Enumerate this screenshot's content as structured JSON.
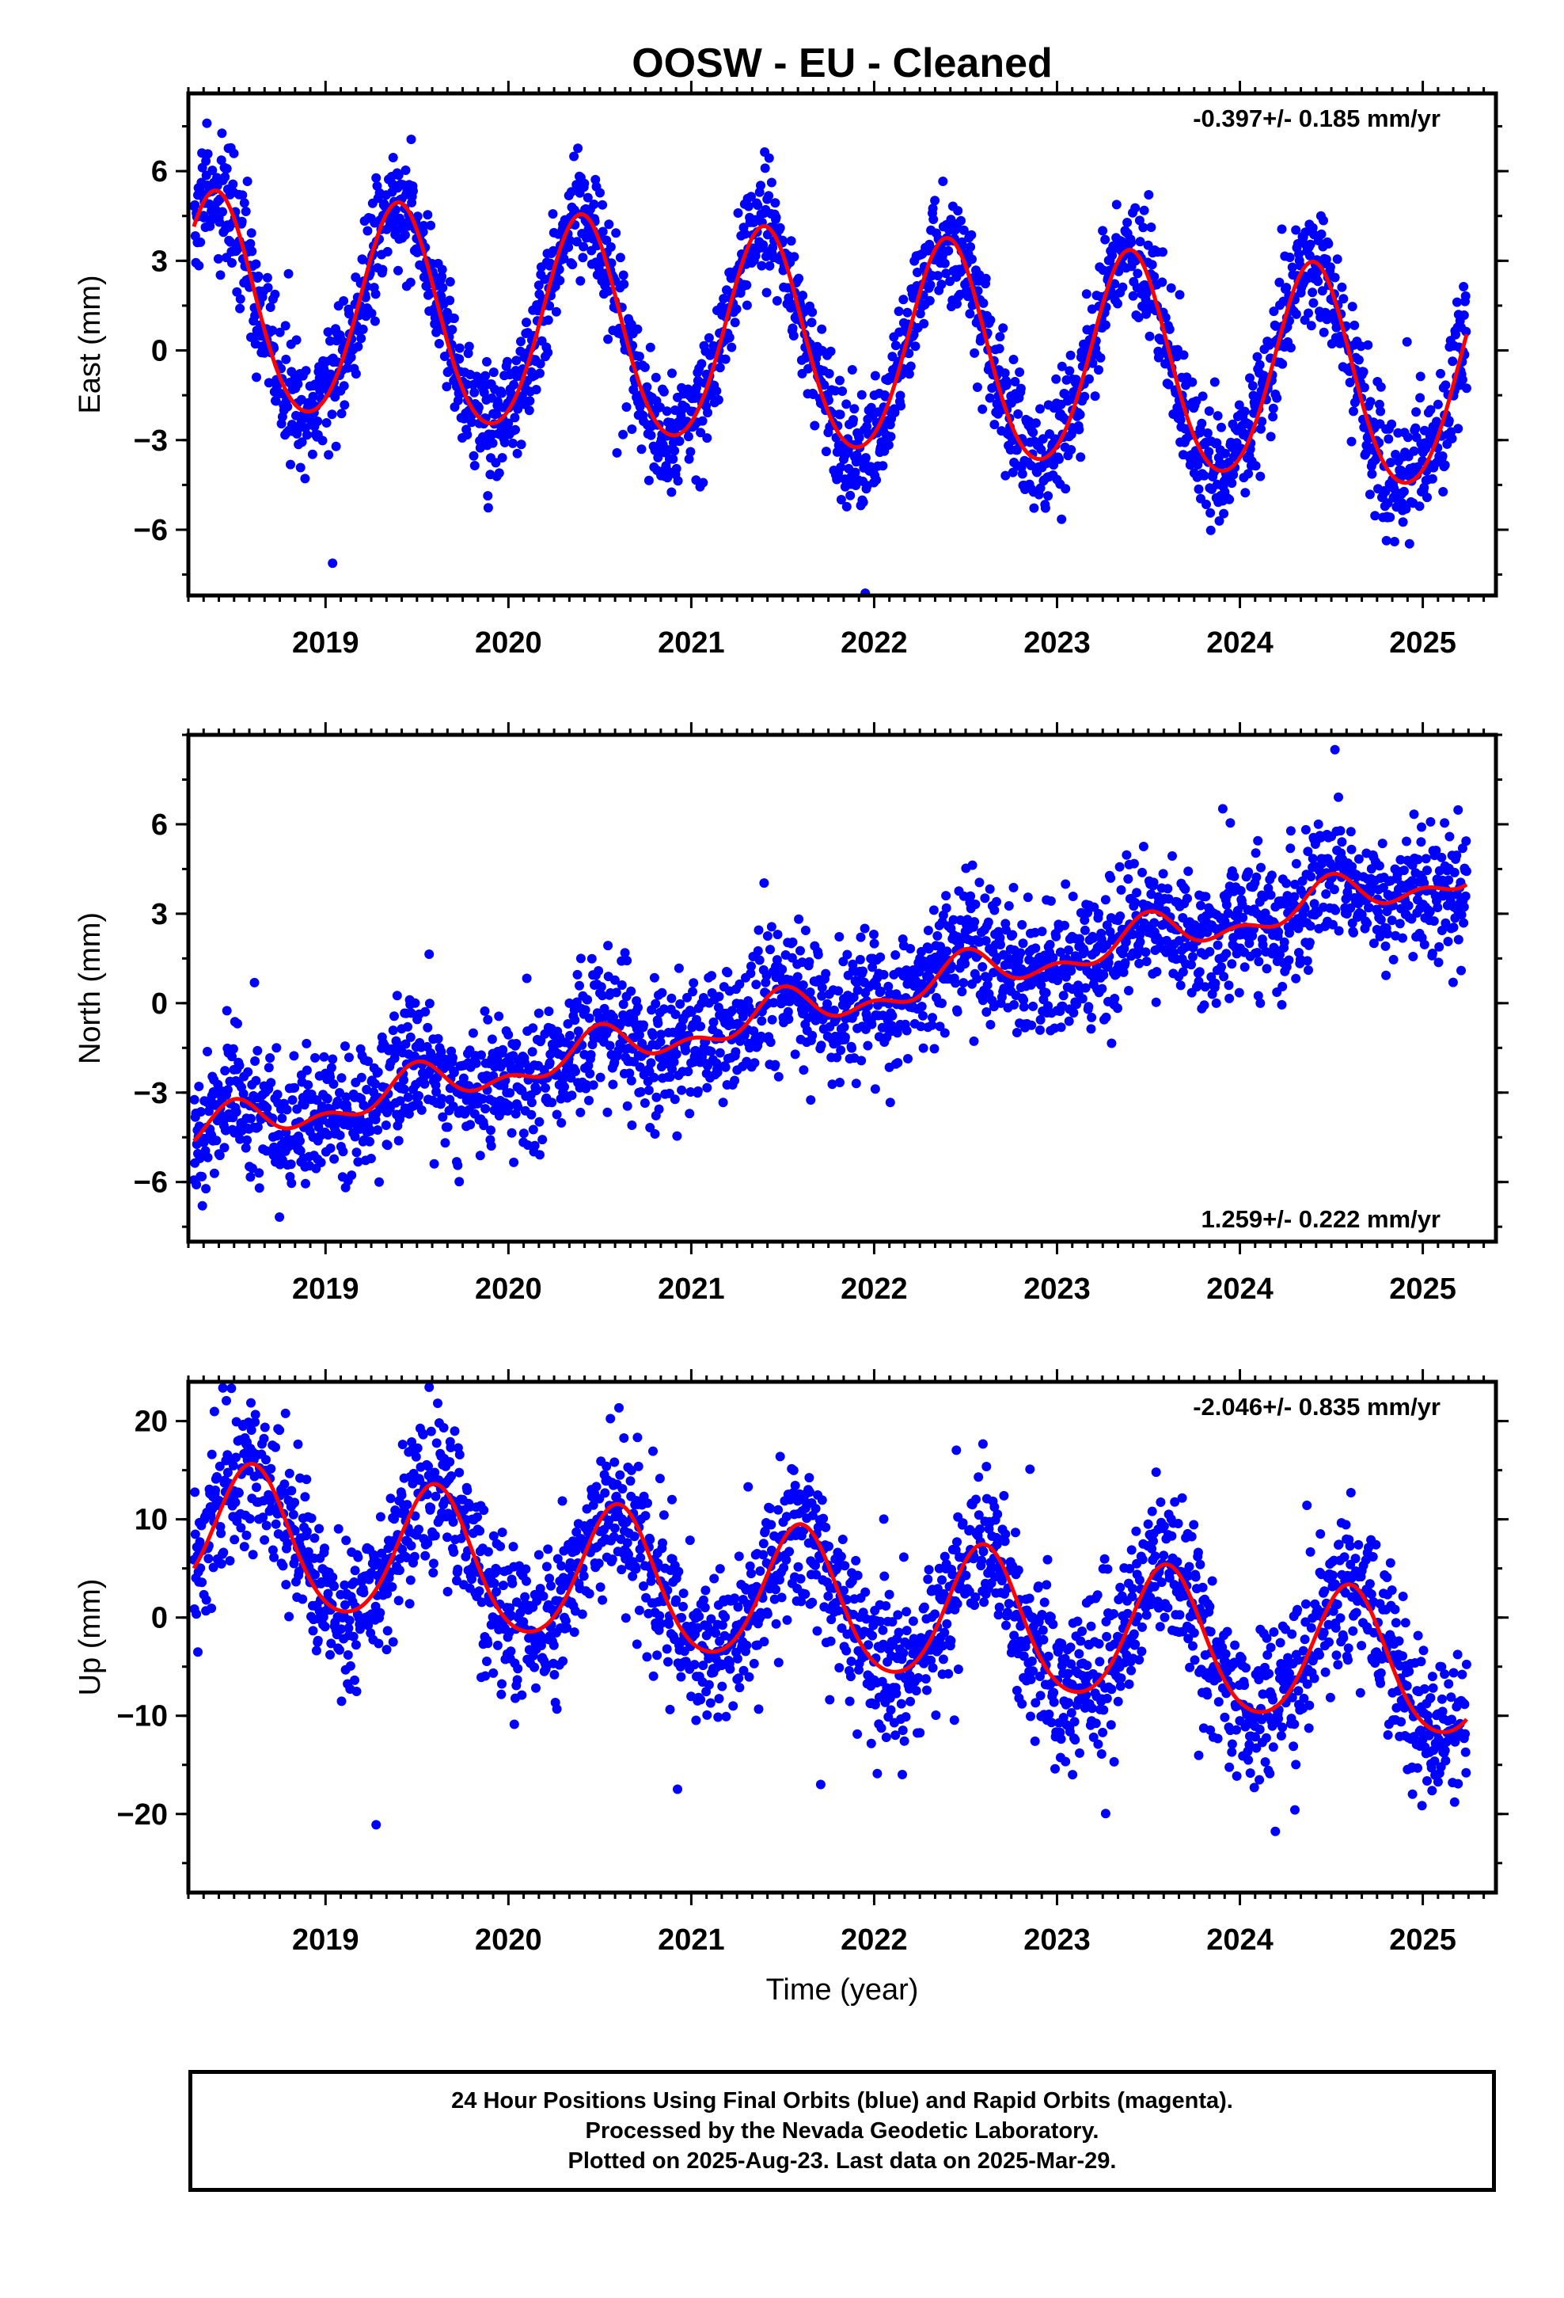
{
  "title": "OOSW  - EU - Cleaned",
  "colors": {
    "final_orbits": "#0000ff",
    "model_fit": "#ff0000",
    "frame": "#000000"
  },
  "footer": {
    "line1": "24 Hour Positions Using Final Orbits (blue) and Rapid Orbits (magenta).",
    "line2": "Processed by the Nevada Geodetic Laboratory.",
    "line3": "Plotted on 2025-Aug-23. Last data on 2025-Mar-29."
  },
  "chart_data": [
    {
      "type": "scatter",
      "component": "east",
      "ylabel": "East (mm)",
      "xlabel": "",
      "xlim": [
        2018.25,
        2025.4
      ],
      "ylim": [
        -8.2,
        8.6
      ],
      "xticks": [
        "2019",
        "2020",
        "2021",
        "2022",
        "2023",
        "2024",
        "2025"
      ],
      "yticks": [
        -6,
        -3,
        0,
        3,
        6
      ],
      "data_start": 2018.28,
      "data_end": 2025.24,
      "annotation": "-0.397+/- 0.185 mm/yr",
      "trend_mm_per_yr": -0.397,
      "offset_at_start_mm": 1.5,
      "annual_amplitude_mm": 3.6,
      "annual_peak_fraction_of_year": 0.4,
      "semiannual_amplitude_mm": 0.3,
      "scatter_sd_mm": 1.0,
      "sample_points": [
        [
          2018.3,
          6.2
        ],
        [
          2018.85,
          -2.0
        ],
        [
          2019.38,
          4.9
        ],
        [
          2019.85,
          -2.4
        ],
        [
          2020.4,
          4.5
        ],
        [
          2020.85,
          -2.7
        ],
        [
          2021.4,
          4.1
        ],
        [
          2021.85,
          -3.0
        ],
        [
          2022.4,
          3.7
        ],
        [
          2022.85,
          -3.4
        ],
        [
          2023.4,
          3.3
        ],
        [
          2023.88,
          -3.8
        ],
        [
          2024.4,
          2.9
        ],
        [
          2024.88,
          -4.3
        ],
        [
          2025.24,
          1.0
        ]
      ]
    },
    {
      "type": "scatter",
      "component": "north",
      "ylabel": "North (mm)",
      "xlabel": "",
      "xlim": [
        2018.25,
        2025.4
      ],
      "ylim": [
        -8.0,
        9.0
      ],
      "xticks": [
        "2019",
        "2020",
        "2021",
        "2022",
        "2023",
        "2024",
        "2025"
      ],
      "yticks": [
        -6,
        -3,
        0,
        3,
        6
      ],
      "data_start": 2018.28,
      "data_end": 2025.24,
      "annotation": "1.259+/- 0.222 mm/yr",
      "trend_mm_per_yr": 1.259,
      "offset_at_start_mm": -4.4,
      "annual_amplitude_mm": 0.55,
      "annual_peak_fraction_of_year": 0.5,
      "semiannual_amplitude_mm": 0.35,
      "scatter_sd_mm": 1.1,
      "sample_points": [
        [
          2018.3,
          -4.8
        ],
        [
          2019.2,
          -4.3
        ],
        [
          2019.5,
          -2.0
        ],
        [
          2020.2,
          -2.9
        ],
        [
          2020.5,
          -0.7
        ],
        [
          2021.2,
          -1.7
        ],
        [
          2021.5,
          0.4
        ],
        [
          2022.2,
          -0.4
        ],
        [
          2022.5,
          1.5
        ],
        [
          2023.2,
          0.8
        ],
        [
          2023.5,
          3.1
        ],
        [
          2024.2,
          2.0
        ],
        [
          2024.5,
          4.3
        ],
        [
          2025.24,
          3.4
        ]
      ]
    },
    {
      "type": "scatter",
      "component": "up",
      "ylabel": "Up (mm)",
      "xlabel": "Time (year)",
      "xlim": [
        2018.25,
        2025.4
      ],
      "ylim": [
        -28,
        24
      ],
      "xticks": [
        "2019",
        "2020",
        "2021",
        "2022",
        "2023",
        "2024",
        "2025"
      ],
      "yticks": [
        -20,
        -10,
        0,
        10,
        20
      ],
      "data_start": 2018.28,
      "data_end": 2025.24,
      "annotation": "-2.046+/- 0.835 mm/yr",
      "trend_mm_per_yr": -2.046,
      "offset_at_start_mm": 8.5,
      "annual_amplitude_mm": 7.0,
      "annual_peak_fraction_of_year": 0.6,
      "semiannual_amplitude_mm": 0.8,
      "scatter_sd_mm": 4.0,
      "sample_points": [
        [
          2018.3,
          3.0
        ],
        [
          2018.6,
          14.0
        ],
        [
          2019.1,
          0.0
        ],
        [
          2019.6,
          12.0
        ],
        [
          2020.1,
          -2.0
        ],
        [
          2020.6,
          10.0
        ],
        [
          2021.1,
          -4.0
        ],
        [
          2021.6,
          8.0
        ],
        [
          2022.1,
          -6.0
        ],
        [
          2022.6,
          5.5
        ],
        [
          2023.1,
          -8.0
        ],
        [
          2023.6,
          3.5
        ],
        [
          2024.1,
          -10.0
        ],
        [
          2024.6,
          1.5
        ],
        [
          2025.24,
          -12.0
        ]
      ]
    }
  ]
}
